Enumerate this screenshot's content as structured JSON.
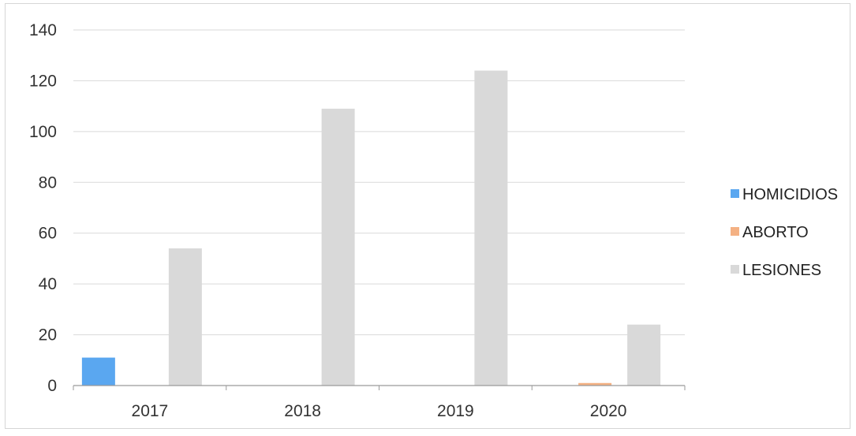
{
  "chart_data": {
    "type": "bar",
    "categories": [
      "2017",
      "2018",
      "2019",
      "2020"
    ],
    "series": [
      {
        "name": "HOMICIDIOS",
        "values": [
          11,
          0,
          0,
          0
        ],
        "color": "#5aa7f0"
      },
      {
        "name": "ABORTO",
        "values": [
          0,
          0,
          0,
          1
        ],
        "color": "#f4b183"
      },
      {
        "name": "LESIONES",
        "values": [
          54,
          109,
          124,
          24
        ],
        "color": "#d9d9d9"
      }
    ],
    "y_ticks": [
      "0",
      "20",
      "40",
      "60",
      "80",
      "100",
      "120",
      "140"
    ],
    "ylim": [
      0,
      140
    ],
    "grid": true,
    "legend_position": "right"
  }
}
